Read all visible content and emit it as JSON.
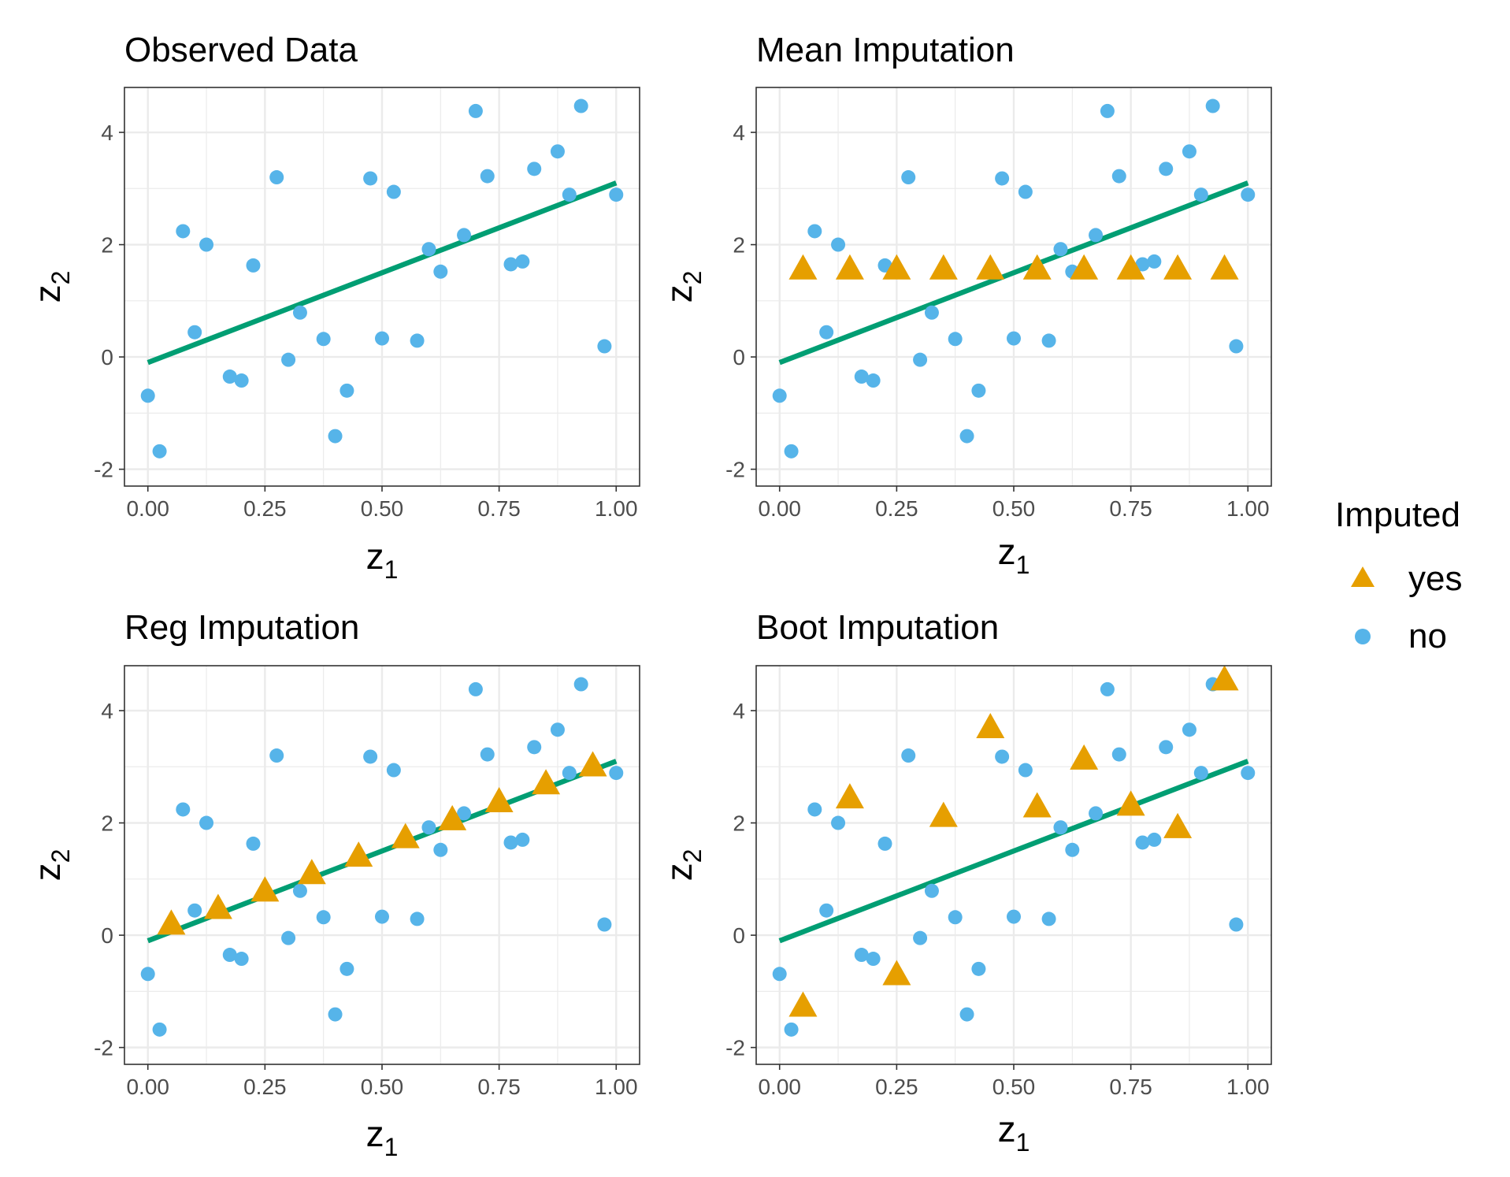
{
  "colors": {
    "observed": "#56B4E9",
    "imputed": "#E69F00",
    "fit_line": "#009E73",
    "grid": "#EBEBEB",
    "panel_border": "#333333",
    "tick_text": "#4D4D4D"
  },
  "legend": {
    "title": "Imputed",
    "items": [
      {
        "label": "yes",
        "shape": "triangle",
        "color": "#E69F00"
      },
      {
        "label": "no",
        "shape": "circle",
        "color": "#56B4E9"
      }
    ]
  },
  "chart_data": [
    {
      "type": "scatter",
      "title": "Observed Data",
      "xlabel_base": "z",
      "xlabel_sub": "1",
      "ylabel_base": "z",
      "ylabel_sub": "2",
      "xlim": [
        -0.05,
        1.05
      ],
      "ylim": [
        -2.3,
        4.8
      ],
      "x_ticks": [
        "0.00",
        "0.25",
        "0.50",
        "0.75",
        "1.00"
      ],
      "y_ticks": [
        "-2",
        "0",
        "2",
        "4"
      ],
      "grid": true,
      "fit_line": {
        "x": [
          0,
          1
        ],
        "y": [
          -0.1,
          3.1
        ]
      },
      "series": [
        {
          "name": "no",
          "shape": "circle",
          "color": "#56B4E9",
          "points": [
            [
              0.0,
              -0.69
            ],
            [
              0.025,
              -1.68
            ],
            [
              0.075,
              2.24
            ],
            [
              0.1,
              0.44
            ],
            [
              0.125,
              2.0
            ],
            [
              0.175,
              -0.35
            ],
            [
              0.2,
              -0.42
            ],
            [
              0.225,
              1.63
            ],
            [
              0.275,
              3.2
            ],
            [
              0.3,
              -0.05
            ],
            [
              0.325,
              0.79
            ],
            [
              0.375,
              0.32
            ],
            [
              0.4,
              -1.41
            ],
            [
              0.425,
              -0.6
            ],
            [
              0.475,
              3.18
            ],
            [
              0.5,
              0.33
            ],
            [
              0.525,
              2.94
            ],
            [
              0.575,
              0.29
            ],
            [
              0.6,
              1.92
            ],
            [
              0.625,
              1.52
            ],
            [
              0.675,
              2.17
            ],
            [
              0.7,
              4.38
            ],
            [
              0.725,
              3.22
            ],
            [
              0.775,
              1.65
            ],
            [
              0.8,
              1.7
            ],
            [
              0.825,
              3.35
            ],
            [
              0.875,
              3.66
            ],
            [
              0.9,
              2.89
            ],
            [
              0.925,
              4.47
            ],
            [
              0.975,
              0.19
            ],
            [
              1.0,
              2.89
            ]
          ]
        }
      ]
    },
    {
      "type": "scatter",
      "title": "Mean Imputation",
      "xlabel_base": "z",
      "xlabel_sub": "1",
      "ylabel_base": "z",
      "ylabel_sub": "2",
      "xlim": [
        -0.05,
        1.05
      ],
      "ylim": [
        -2.3,
        4.8
      ],
      "x_ticks": [
        "0.00",
        "0.25",
        "0.50",
        "0.75",
        "1.00"
      ],
      "y_ticks": [
        "-2",
        "0",
        "2",
        "4"
      ],
      "grid": true,
      "fit_line": {
        "x": [
          0,
          1
        ],
        "y": [
          -0.1,
          3.1
        ]
      },
      "series": [
        {
          "name": "no",
          "shape": "circle",
          "color": "#56B4E9",
          "points": [
            [
              0.0,
              -0.69
            ],
            [
              0.025,
              -1.68
            ],
            [
              0.075,
              2.24
            ],
            [
              0.1,
              0.44
            ],
            [
              0.125,
              2.0
            ],
            [
              0.175,
              -0.35
            ],
            [
              0.2,
              -0.42
            ],
            [
              0.225,
              1.63
            ],
            [
              0.275,
              3.2
            ],
            [
              0.3,
              -0.05
            ],
            [
              0.325,
              0.79
            ],
            [
              0.375,
              0.32
            ],
            [
              0.4,
              -1.41
            ],
            [
              0.425,
              -0.6
            ],
            [
              0.475,
              3.18
            ],
            [
              0.5,
              0.33
            ],
            [
              0.525,
              2.94
            ],
            [
              0.575,
              0.29
            ],
            [
              0.6,
              1.92
            ],
            [
              0.625,
              1.52
            ],
            [
              0.675,
              2.17
            ],
            [
              0.7,
              4.38
            ],
            [
              0.725,
              3.22
            ],
            [
              0.775,
              1.65
            ],
            [
              0.8,
              1.7
            ],
            [
              0.825,
              3.35
            ],
            [
              0.875,
              3.66
            ],
            [
              0.9,
              2.89
            ],
            [
              0.925,
              4.47
            ],
            [
              0.975,
              0.19
            ],
            [
              1.0,
              2.89
            ]
          ]
        },
        {
          "name": "yes",
          "shape": "triangle",
          "color": "#E69F00",
          "points": [
            [
              0.05,
              1.55
            ],
            [
              0.15,
              1.55
            ],
            [
              0.25,
              1.55
            ],
            [
              0.35,
              1.55
            ],
            [
              0.45,
              1.55
            ],
            [
              0.55,
              1.55
            ],
            [
              0.65,
              1.55
            ],
            [
              0.75,
              1.55
            ],
            [
              0.85,
              1.55
            ],
            [
              0.95,
              1.55
            ]
          ]
        }
      ]
    },
    {
      "type": "scatter",
      "title": "Reg Imputation",
      "xlabel_base": "z",
      "xlabel_sub": "1",
      "ylabel_base": "z",
      "ylabel_sub": "2",
      "xlim": [
        -0.05,
        1.05
      ],
      "ylim": [
        -2.3,
        4.8
      ],
      "x_ticks": [
        "0.00",
        "0.25",
        "0.50",
        "0.75",
        "1.00"
      ],
      "y_ticks": [
        "-2",
        "0",
        "2",
        "4"
      ],
      "grid": true,
      "fit_line": {
        "x": [
          0,
          1
        ],
        "y": [
          -0.1,
          3.1
        ]
      },
      "series": [
        {
          "name": "no",
          "shape": "circle",
          "color": "#56B4E9",
          "points": [
            [
              0.0,
              -0.69
            ],
            [
              0.025,
              -1.68
            ],
            [
              0.075,
              2.24
            ],
            [
              0.1,
              0.44
            ],
            [
              0.125,
              2.0
            ],
            [
              0.175,
              -0.35
            ],
            [
              0.2,
              -0.42
            ],
            [
              0.225,
              1.63
            ],
            [
              0.275,
              3.2
            ],
            [
              0.3,
              -0.05
            ],
            [
              0.325,
              0.79
            ],
            [
              0.375,
              0.32
            ],
            [
              0.4,
              -1.41
            ],
            [
              0.425,
              -0.6
            ],
            [
              0.475,
              3.18
            ],
            [
              0.5,
              0.33
            ],
            [
              0.525,
              2.94
            ],
            [
              0.575,
              0.29
            ],
            [
              0.6,
              1.92
            ],
            [
              0.625,
              1.52
            ],
            [
              0.675,
              2.17
            ],
            [
              0.7,
              4.38
            ],
            [
              0.725,
              3.22
            ],
            [
              0.775,
              1.65
            ],
            [
              0.8,
              1.7
            ],
            [
              0.825,
              3.35
            ],
            [
              0.875,
              3.66
            ],
            [
              0.9,
              2.89
            ],
            [
              0.925,
              4.47
            ],
            [
              0.975,
              0.19
            ],
            [
              1.0,
              2.89
            ]
          ]
        },
        {
          "name": "yes",
          "shape": "triangle",
          "color": "#E69F00",
          "points": [
            [
              0.05,
              0.18
            ],
            [
              0.15,
              0.46
            ],
            [
              0.25,
              0.77
            ],
            [
              0.35,
              1.08
            ],
            [
              0.45,
              1.39
            ],
            [
              0.55,
              1.72
            ],
            [
              0.65,
              2.04
            ],
            [
              0.75,
              2.36
            ],
            [
              0.85,
              2.68
            ],
            [
              0.95,
              3.0
            ]
          ]
        }
      ]
    },
    {
      "type": "scatter",
      "title": "Boot Imputation",
      "xlabel_base": "z",
      "xlabel_sub": "1",
      "ylabel_base": "z",
      "ylabel_sub": "2",
      "xlim": [
        -0.05,
        1.05
      ],
      "ylim": [
        -2.3,
        4.8
      ],
      "x_ticks": [
        "0.00",
        "0.25",
        "0.50",
        "0.75",
        "1.00"
      ],
      "y_ticks": [
        "-2",
        "0",
        "2",
        "4"
      ],
      "grid": true,
      "fit_line": {
        "x": [
          0,
          1
        ],
        "y": [
          -0.1,
          3.1
        ]
      },
      "series": [
        {
          "name": "no",
          "shape": "circle",
          "color": "#56B4E9",
          "points": [
            [
              0.0,
              -0.69
            ],
            [
              0.025,
              -1.68
            ],
            [
              0.075,
              2.24
            ],
            [
              0.1,
              0.44
            ],
            [
              0.125,
              2.0
            ],
            [
              0.175,
              -0.35
            ],
            [
              0.2,
              -0.42
            ],
            [
              0.225,
              1.63
            ],
            [
              0.275,
              3.2
            ],
            [
              0.3,
              -0.05
            ],
            [
              0.325,
              0.79
            ],
            [
              0.375,
              0.32
            ],
            [
              0.4,
              -1.41
            ],
            [
              0.425,
              -0.6
            ],
            [
              0.475,
              3.18
            ],
            [
              0.5,
              0.33
            ],
            [
              0.525,
              2.94
            ],
            [
              0.575,
              0.29
            ],
            [
              0.6,
              1.92
            ],
            [
              0.625,
              1.52
            ],
            [
              0.675,
              2.17
            ],
            [
              0.7,
              4.38
            ],
            [
              0.725,
              3.22
            ],
            [
              0.775,
              1.65
            ],
            [
              0.8,
              1.7
            ],
            [
              0.825,
              3.35
            ],
            [
              0.875,
              3.66
            ],
            [
              0.9,
              2.89
            ],
            [
              0.925,
              4.47
            ],
            [
              0.975,
              0.19
            ],
            [
              1.0,
              2.89
            ]
          ]
        },
        {
          "name": "yes",
          "shape": "triangle",
          "color": "#E69F00",
          "points": [
            [
              0.05,
              -1.28
            ],
            [
              0.15,
              2.43
            ],
            [
              0.25,
              -0.72
            ],
            [
              0.35,
              2.1
            ],
            [
              0.45,
              3.68
            ],
            [
              0.55,
              2.27
            ],
            [
              0.65,
              3.12
            ],
            [
              0.75,
              2.3
            ],
            [
              0.85,
              1.9
            ],
            [
              0.95,
              4.53
            ]
          ]
        }
      ]
    }
  ]
}
